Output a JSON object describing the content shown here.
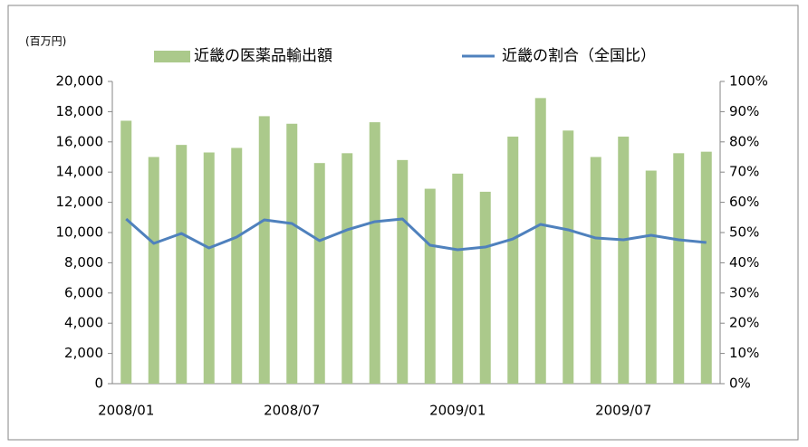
{
  "chart_data": {
    "type": "bar",
    "unit_label": "(百万円)",
    "categories": [
      "2008/01",
      null,
      null,
      null,
      null,
      null,
      "2008/07",
      null,
      null,
      null,
      null,
      null,
      "2009/01",
      null,
      null,
      null,
      null,
      null,
      "2009/07",
      null,
      null,
      null
    ],
    "series": [
      {
        "name": "近畿の医薬品輸出額",
        "type": "bar",
        "color": "#abc98b",
        "values": [
          17400,
          15000,
          15800,
          15300,
          15600,
          17700,
          17200,
          14600,
          15250,
          17300,
          14800,
          12900,
          13900,
          12700,
          16350,
          18900,
          16750,
          15000,
          16350,
          14100,
          15250,
          15350
        ]
      },
      {
        "name": "近畿の割合（全国比）",
        "type": "line",
        "axis": "y2",
        "color": "#4f81bd",
        "values": [
          54.5,
          46.4,
          49.7,
          44.9,
          48.5,
          54.2,
          53,
          47.3,
          50.9,
          53.6,
          54.5,
          45.8,
          44.3,
          45.2,
          47.9,
          52.7,
          50.9,
          48.2,
          47.6,
          49.1,
          47.6,
          46.7
        ]
      }
    ],
    "ylim": [
      0,
      20000
    ],
    "yticks": [
      0,
      {
        "value": 2000,
        "label": "2,000"
      },
      {
        "value": 4000,
        "label": "4,000"
      },
      {
        "value": 6000,
        "label": "6,000"
      },
      {
        "value": 8000,
        "label": "8,000"
      },
      {
        "value": 10000,
        "label": "10,000"
      },
      {
        "value": 12000,
        "label": "12,000"
      },
      {
        "value": 14000,
        "label": "14,000"
      },
      {
        "value": 16000,
        "label": "16,000"
      },
      {
        "value": 18000,
        "label": "18,000"
      },
      {
        "value": 20000,
        "label": "20,000"
      }
    ],
    "y2lim": [
      0,
      100
    ],
    "y2ticks": [
      {
        "value": 0,
        "label": "0%"
      },
      {
        "value": 10,
        "label": "10%"
      },
      {
        "value": 20,
        "label": "20%"
      },
      {
        "value": 30,
        "label": "30%"
      },
      {
        "value": 40,
        "label": "40%"
      },
      {
        "value": 50,
        "label": "50%"
      },
      {
        "value": 60,
        "label": "60%"
      },
      {
        "value": 70,
        "label": "70%"
      },
      {
        "value": 80,
        "label": "80%"
      },
      {
        "value": 90,
        "label": "90%"
      },
      {
        "value": 100,
        "label": "100%"
      }
    ],
    "grid": false,
    "legend": "top"
  }
}
